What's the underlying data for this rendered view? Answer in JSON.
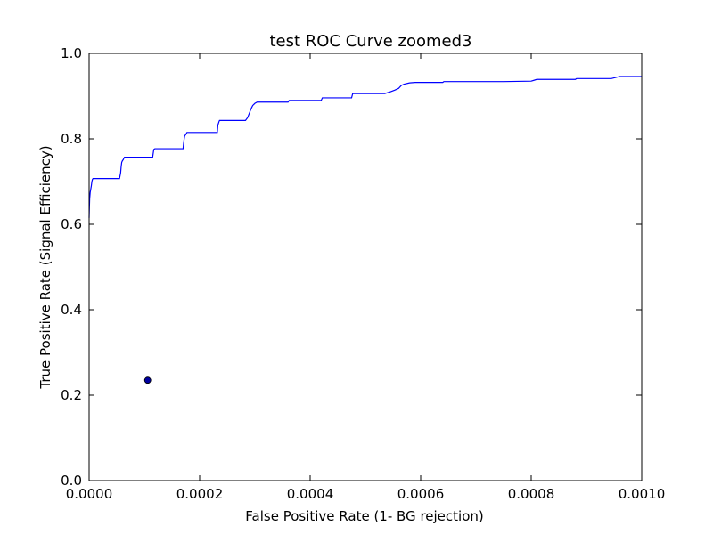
{
  "chart_data": {
    "type": "line",
    "title": "test ROC Curve zoomed3",
    "xlabel": "False Positive Rate (1- BG rejection)",
    "ylabel": "True Positive Rate (Signal Efficiency)",
    "xlim": [
      0.0,
      0.001
    ],
    "ylim": [
      0.0,
      1.0
    ],
    "xticks": [
      "0.0000",
      "0.0002",
      "0.0004",
      "0.0006",
      "0.0008",
      "0.0010"
    ],
    "yticks": [
      "0.0",
      "0.2",
      "0.4",
      "0.6",
      "0.8",
      "1.0"
    ],
    "grid": false,
    "series": [
      {
        "kind": "line",
        "color": "#0000ff",
        "x": [
          0.0,
          5e-07,
          1e-06,
          2e-06,
          4e-06,
          5e-06,
          6e-06,
          7e-06,
          1.2e-05,
          5.5e-05,
          5.7e-05,
          5.8e-05,
          5.9e-05,
          6e-05,
          6.1e-05,
          6.2e-05,
          6.3e-05,
          6.4e-05,
          6.6e-05,
          0.000115,
          0.000117,
          0.000119,
          0.00017,
          0.000171,
          0.000172,
          0.000173,
          0.000175,
          0.000177,
          0.000178,
          0.000232,
          0.000233,
          0.000235,
          0.000236,
          0.000283,
          0.000287,
          0.00029,
          0.000293,
          0.000296,
          0.0003,
          0.000304,
          0.00031,
          0.00036,
          0.000362,
          0.00042,
          0.000422,
          0.000475,
          0.000477,
          0.000535,
          0.000545,
          0.000553,
          0.00056,
          0.000565,
          0.00057,
          0.00058,
          0.00059,
          0.00064,
          0.000642,
          0.00075,
          0.0008,
          0.000805,
          0.00081,
          0.00088,
          0.000882,
          0.000945,
          0.00096,
          0.001
        ],
        "y": [
          0.615,
          0.64,
          0.66,
          0.675,
          0.69,
          0.7,
          0.705,
          0.707,
          0.707,
          0.707,
          0.72,
          0.735,
          0.745,
          0.748,
          0.75,
          0.752,
          0.755,
          0.757,
          0.757,
          0.757,
          0.775,
          0.777,
          0.777,
          0.79,
          0.8,
          0.807,
          0.81,
          0.815,
          0.815,
          0.815,
          0.832,
          0.84,
          0.843,
          0.843,
          0.85,
          0.86,
          0.87,
          0.878,
          0.883,
          0.886,
          0.886,
          0.886,
          0.89,
          0.89,
          0.896,
          0.896,
          0.906,
          0.906,
          0.91,
          0.914,
          0.918,
          0.925,
          0.928,
          0.931,
          0.932,
          0.932,
          0.934,
          0.934,
          0.935,
          0.937,
          0.939,
          0.939,
          0.941,
          0.941,
          0.946,
          0.946
        ]
      },
      {
        "kind": "point",
        "color": "#0000a0",
        "x": [
          0.000106
        ],
        "y": [
          0.235
        ]
      }
    ]
  }
}
